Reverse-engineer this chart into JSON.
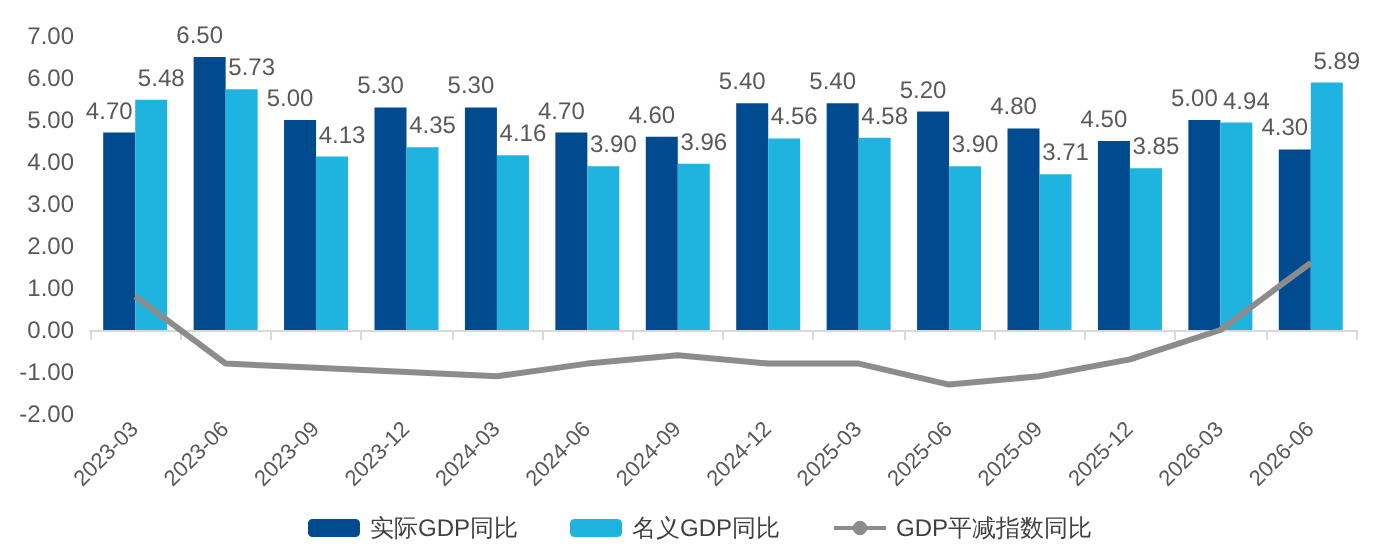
{
  "chart_data": {
    "type": "bar",
    "categories": [
      "2023-03",
      "2023-06",
      "2023-09",
      "2023-12",
      "2024-03",
      "2024-06",
      "2024-09",
      "2024-12",
      "2025-03",
      "2025-06",
      "2025-09",
      "2025-12",
      "2026-03",
      "2026-06"
    ],
    "series": [
      {
        "name": "实际GDP同比",
        "color": "#004a8f",
        "values": [
          4.7,
          6.5,
          5.0,
          5.3,
          5.3,
          4.7,
          4.6,
          5.4,
          5.4,
          5.2,
          4.8,
          4.5,
          5.0,
          4.3
        ],
        "value_labels": [
          "4.70",
          "6.50",
          "5.00",
          "5.30",
          "5.30",
          "4.70",
          "4.60",
          "5.40",
          "5.40",
          "5.20",
          "4.80",
          "4.50",
          "5.00",
          "4.30"
        ]
      },
      {
        "name": "名义GDP同比",
        "color": "#1fb4e0",
        "values": [
          5.48,
          5.73,
          4.13,
          4.35,
          4.16,
          3.9,
          3.96,
          4.56,
          4.58,
          3.9,
          3.71,
          3.85,
          4.94,
          5.89
        ],
        "value_labels": [
          "5.48",
          "5.73",
          "4.13",
          "4.35",
          "4.16",
          "3.90",
          "3.96",
          "4.56",
          "4.58",
          "3.90",
          "3.71",
          "3.85",
          "4.94",
          "5.89"
        ]
      },
      {
        "name": "GDP平减指数同比",
        "type": "line",
        "color": "#8c8c8c",
        "marker": "none",
        "values": [
          0.8,
          -0.8,
          -0.9,
          -1.0,
          -1.1,
          -0.8,
          -0.6,
          -0.8,
          -0.8,
          -1.3,
          -1.1,
          -0.7,
          0.0,
          1.6
        ]
      }
    ],
    "ylim": [
      -2,
      7
    ],
    "yticks": [
      {
        "value": -2,
        "label": "-2.00"
      },
      {
        "value": -1,
        "label": "-1.00"
      },
      {
        "value": 0,
        "label": "0.00"
      },
      {
        "value": 1,
        "label": "1.00"
      },
      {
        "value": 2,
        "label": "2.00"
      },
      {
        "value": 3,
        "label": "3.00"
      },
      {
        "value": 4,
        "label": "4.00"
      },
      {
        "value": 5,
        "label": "5.00"
      },
      {
        "value": 6,
        "label": "6.00"
      },
      {
        "value": 7,
        "label": "7.00"
      }
    ],
    "legend": "bottom"
  }
}
